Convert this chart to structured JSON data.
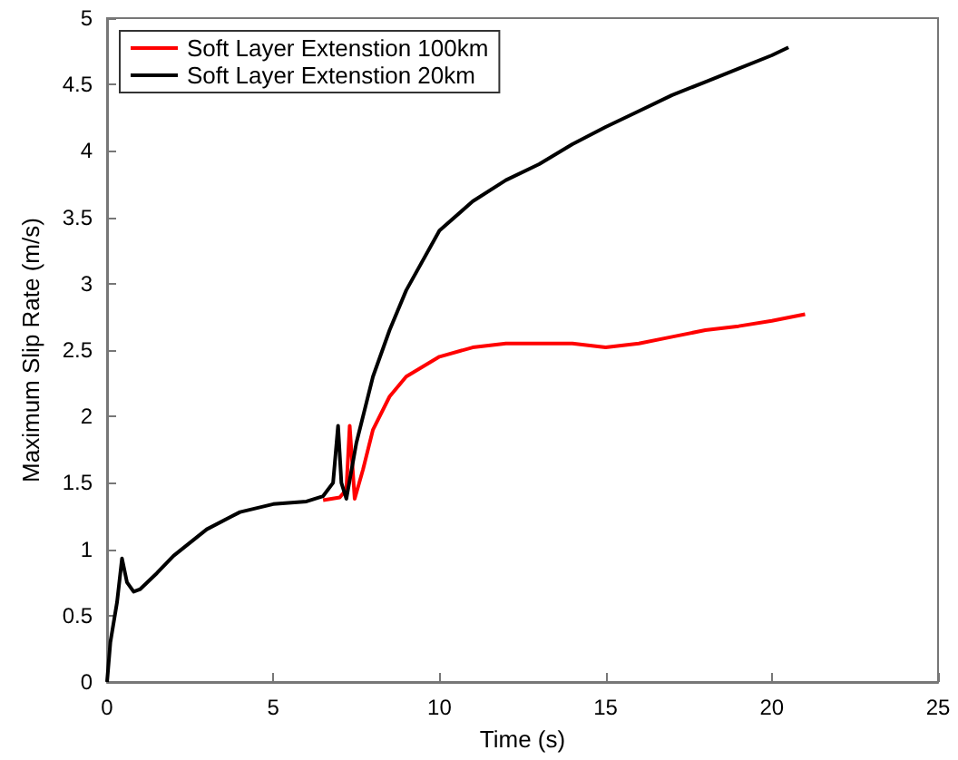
{
  "chart_data": {
    "type": "line",
    "xlabel": "Time (s)",
    "ylabel": "Maximum Slip Rate (m/s)",
    "xlim": [
      0,
      25
    ],
    "xticks": [
      0,
      5,
      10,
      15,
      20,
      25
    ],
    "ylim": [
      0,
      5
    ],
    "yticks": [
      0,
      0.5,
      1,
      1.5,
      2,
      2.5,
      3,
      3.5,
      4,
      4.5,
      5
    ],
    "grid": false,
    "legend": "top left",
    "marker": "none",
    "line_style": "solid",
    "series": [
      {
        "name": "Soft Layer Extenstion 100km",
        "color": "#ff0000",
        "x": [
          6.5,
          7,
          7.2,
          7.3,
          7.45,
          7.7,
          8,
          8.5,
          9,
          10,
          11,
          12,
          13,
          14,
          15,
          16,
          17,
          18,
          19,
          20,
          21
        ],
        "values": [
          1.37,
          1.39,
          1.45,
          1.93,
          1.38,
          1.6,
          1.9,
          2.15,
          2.3,
          2.45,
          2.52,
          2.55,
          2.55,
          2.55,
          2.52,
          2.55,
          2.6,
          2.65,
          2.68,
          2.72,
          2.77
        ]
      },
      {
        "name": "Soft Layer Extenstion 20km",
        "color": "#000000",
        "x": [
          0,
          0.1,
          0.3,
          0.45,
          0.6,
          0.8,
          1,
          1.5,
          2,
          3,
          4,
          5,
          6,
          6.5,
          6.8,
          6.95,
          7.05,
          7.2,
          7.5,
          8,
          8.5,
          9,
          10,
          11,
          12,
          13,
          14,
          15,
          16,
          17,
          18,
          19,
          20,
          20.5
        ],
        "values": [
          0,
          0.3,
          0.6,
          0.93,
          0.75,
          0.68,
          0.7,
          0.82,
          0.95,
          1.15,
          1.28,
          1.34,
          1.36,
          1.4,
          1.5,
          1.93,
          1.5,
          1.38,
          1.8,
          2.3,
          2.65,
          2.95,
          3.4,
          3.62,
          3.78,
          3.9,
          4.05,
          4.18,
          4.3,
          4.42,
          4.52,
          4.62,
          4.72,
          4.78
        ]
      }
    ]
  }
}
